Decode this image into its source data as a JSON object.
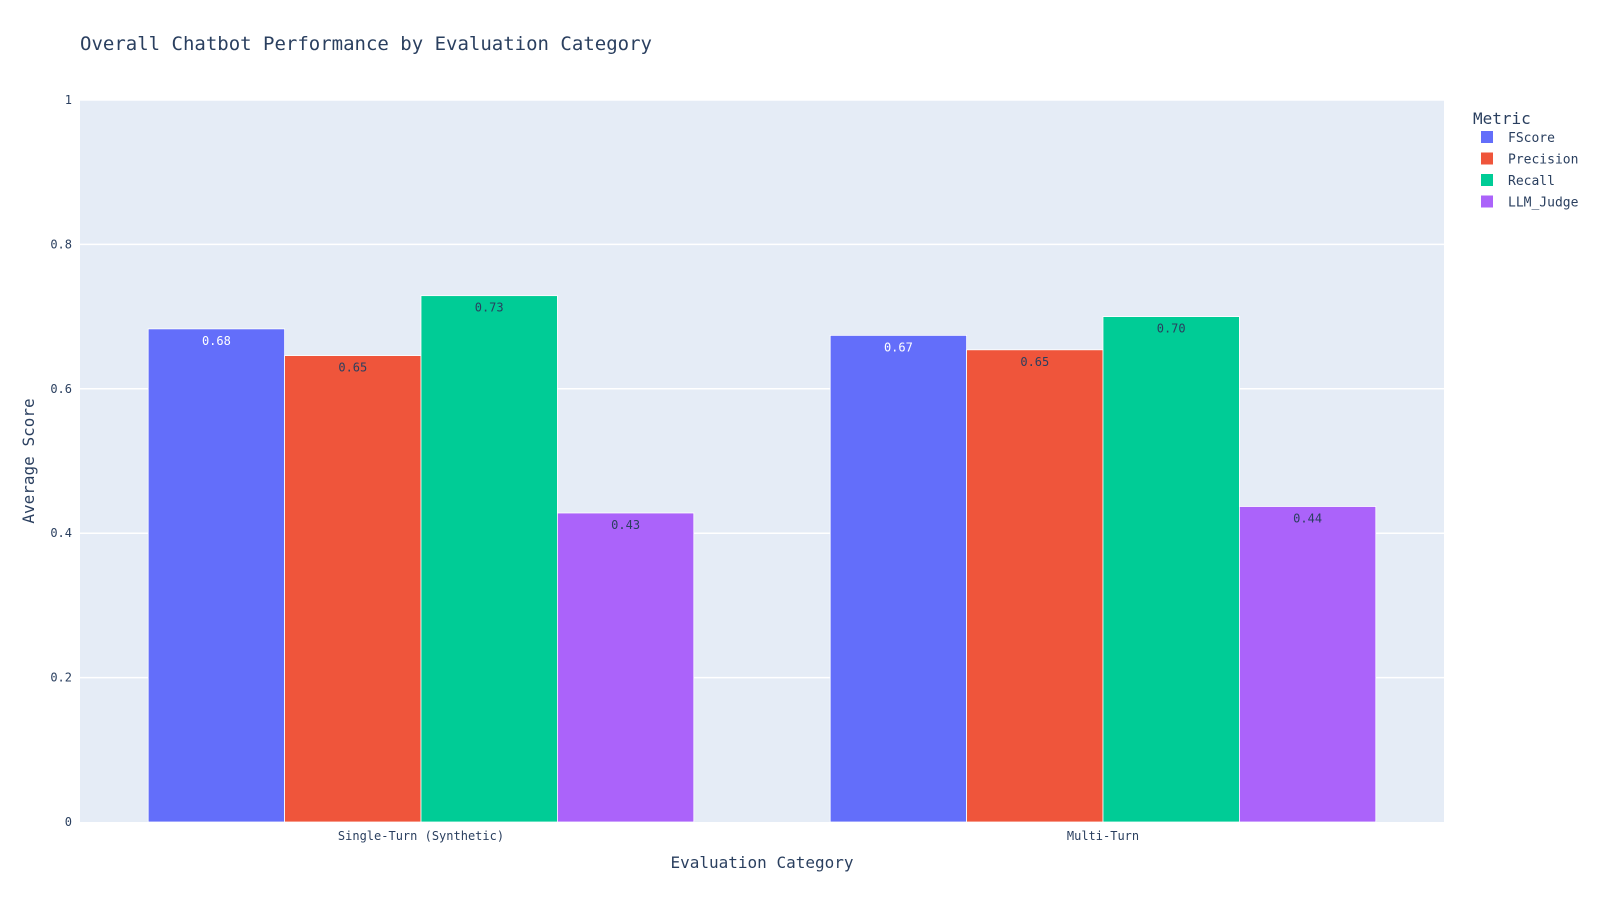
{
  "chart_data": {
    "type": "bar",
    "title": "Overall Chatbot Performance by Evaluation Category",
    "xlabel": "Evaluation Category",
    "ylabel": "Average Score",
    "ylim": [
      0,
      1
    ],
    "yticks": [
      0,
      0.2,
      0.4,
      0.6,
      0.8,
      1
    ],
    "ytick_labels": [
      "0",
      "0.2",
      "0.4",
      "0.6",
      "0.8",
      "1"
    ],
    "grid": true,
    "legend_title": "Metric",
    "legend_position": "top-right",
    "categories": [
      "Single-Turn (Synthetic)",
      "Multi-Turn"
    ],
    "series": [
      {
        "name": "FScore",
        "color": "#636efa",
        "label_color": "#ffffff",
        "values": [
          0.683,
          0.674
        ],
        "labels": [
          "0.68",
          "0.67"
        ]
      },
      {
        "name": "Precision",
        "color": "#ef553b",
        "label_color": "#2a3f5f",
        "values": [
          0.646,
          0.654
        ],
        "labels": [
          "0.65",
          "0.65"
        ]
      },
      {
        "name": "Recall",
        "color": "#00cc96",
        "label_color": "#2a3f5f",
        "values": [
          0.729,
          0.7
        ],
        "labels": [
          "0.73",
          "0.70"
        ]
      },
      {
        "name": "LLM_Judge",
        "color": "#ab63fa",
        "label_color": "#2a3f5f",
        "values": [
          0.428,
          0.437
        ],
        "labels": [
          "0.43",
          "0.44"
        ]
      }
    ],
    "colors": {
      "plot_background": "#e5ecf6",
      "gridline": "#ffffff",
      "text": "#2a3f5f"
    }
  }
}
